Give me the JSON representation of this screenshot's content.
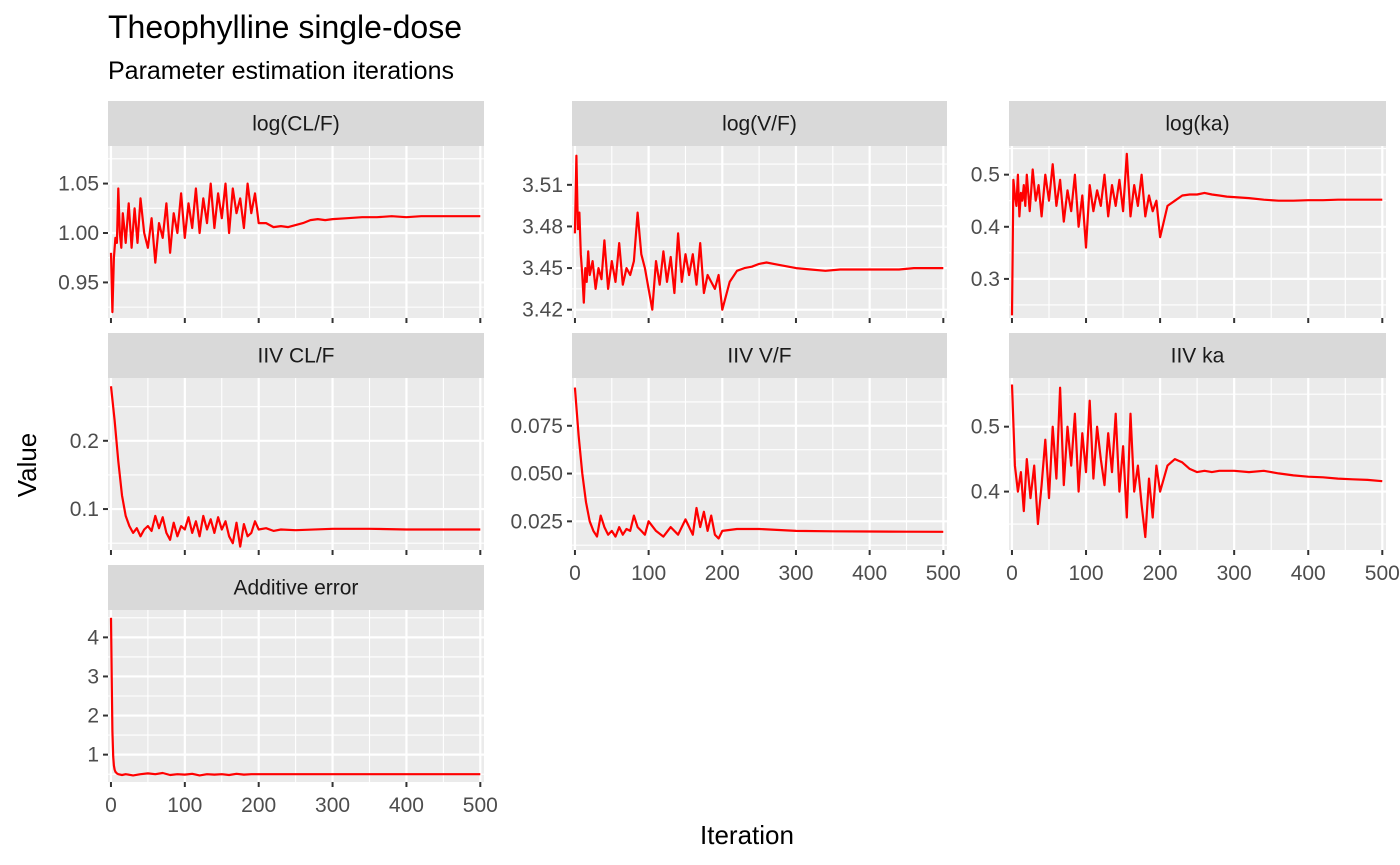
{
  "chart_data": {
    "type": "line",
    "title": "Theophylline single-dose",
    "subtitle": "Parameter estimation iterations",
    "xlabel": "Iteration",
    "ylabel": "Value",
    "line_color": "#ff0000",
    "panel_background": "#ebebeb",
    "strip_background": "#d9d9d9",
    "grid": true,
    "facet_scales": "free_y",
    "x_ticks": [
      0,
      100,
      200,
      300,
      400,
      500
    ],
    "xlim": [
      -4,
      505
    ],
    "panels": [
      {
        "label": "log(CL/F)",
        "ylim": [
          0.914,
          1.088
        ],
        "y_ticks": [
          0.95,
          1.0,
          1.05
        ],
        "y_tick_labels": [
          "0.95",
          "1.00",
          "1.05"
        ],
        "x": [
          0,
          2,
          4,
          6,
          8,
          10,
          12,
          14,
          16,
          18,
          20,
          24,
          28,
          32,
          36,
          40,
          45,
          50,
          55,
          60,
          65,
          70,
          75,
          80,
          85,
          90,
          95,
          100,
          105,
          110,
          115,
          120,
          125,
          130,
          135,
          140,
          145,
          150,
          155,
          160,
          165,
          170,
          175,
          180,
          185,
          190,
          195,
          200,
          210,
          220,
          230,
          240,
          250,
          260,
          270,
          280,
          290,
          300,
          320,
          340,
          360,
          380,
          400,
          420,
          440,
          460,
          480,
          500
        ],
        "y": [
          0.98,
          0.92,
          0.975,
          0.995,
          0.99,
          1.045,
          1.0,
          0.985,
          1.02,
          1.005,
          0.99,
          1.03,
          0.985,
          1.025,
          0.99,
          1.035,
          1.0,
          0.985,
          1.015,
          0.97,
          1.01,
          0.995,
          1.03,
          0.98,
          1.02,
          1.0,
          1.04,
          0.995,
          1.03,
          1.005,
          1.045,
          1.0,
          1.035,
          1.01,
          1.05,
          1.005,
          1.04,
          1.015,
          1.05,
          1.0,
          1.045,
          1.02,
          1.035,
          1.005,
          1.05,
          1.02,
          1.04,
          1.01,
          1.01,
          1.006,
          1.007,
          1.006,
          1.008,
          1.01,
          1.013,
          1.014,
          1.013,
          1.014,
          1.015,
          1.016,
          1.016,
          1.017,
          1.016,
          1.017,
          1.017,
          1.017,
          1.017,
          1.017
        ]
      },
      {
        "label": "log(V/F)",
        "ylim": [
          3.414,
          3.538
        ],
        "y_ticks": [
          3.42,
          3.45,
          3.48,
          3.51
        ],
        "y_tick_labels": [
          "3.42",
          "3.45",
          "3.48",
          "3.51"
        ],
        "x": [
          0,
          2,
          4,
          6,
          8,
          10,
          12,
          14,
          16,
          18,
          20,
          24,
          28,
          32,
          36,
          40,
          45,
          50,
          55,
          60,
          65,
          70,
          75,
          80,
          85,
          90,
          95,
          100,
          105,
          110,
          115,
          120,
          125,
          130,
          135,
          140,
          145,
          150,
          155,
          160,
          165,
          170,
          175,
          180,
          185,
          190,
          195,
          200,
          210,
          220,
          230,
          240,
          250,
          260,
          270,
          280,
          290,
          300,
          320,
          340,
          360,
          380,
          400,
          420,
          440,
          460,
          480,
          500
        ],
        "y": [
          3.475,
          3.531,
          3.478,
          3.49,
          3.46,
          3.445,
          3.425,
          3.45,
          3.44,
          3.462,
          3.445,
          3.455,
          3.435,
          3.45,
          3.442,
          3.47,
          3.435,
          3.455,
          3.44,
          3.468,
          3.438,
          3.45,
          3.445,
          3.455,
          3.49,
          3.46,
          3.45,
          3.435,
          3.42,
          3.455,
          3.438,
          3.462,
          3.44,
          3.458,
          3.432,
          3.475,
          3.44,
          3.46,
          3.445,
          3.46,
          3.438,
          3.468,
          3.432,
          3.445,
          3.44,
          3.435,
          3.445,
          3.42,
          3.44,
          3.448,
          3.45,
          3.451,
          3.453,
          3.454,
          3.453,
          3.452,
          3.451,
          3.45,
          3.449,
          3.448,
          3.449,
          3.449,
          3.449,
          3.449,
          3.449,
          3.45,
          3.45,
          3.45
        ]
      },
      {
        "label": "log(ka)",
        "ylim": [
          0.225,
          0.555
        ],
        "y_ticks": [
          0.3,
          0.4,
          0.5
        ],
        "y_tick_labels": [
          "0.3",
          "0.4",
          "0.5"
        ],
        "x": [
          0,
          2,
          4,
          6,
          8,
          10,
          12,
          14,
          16,
          18,
          20,
          24,
          28,
          32,
          36,
          40,
          45,
          50,
          55,
          60,
          65,
          70,
          75,
          80,
          85,
          90,
          95,
          100,
          105,
          110,
          115,
          120,
          125,
          130,
          135,
          140,
          145,
          150,
          155,
          160,
          165,
          170,
          175,
          180,
          185,
          190,
          195,
          200,
          210,
          220,
          230,
          240,
          250,
          260,
          270,
          280,
          290,
          300,
          320,
          340,
          360,
          380,
          400,
          420,
          440,
          460,
          480,
          500
        ],
        "y": [
          0.23,
          0.49,
          0.46,
          0.44,
          0.5,
          0.42,
          0.465,
          0.45,
          0.48,
          0.44,
          0.5,
          0.43,
          0.51,
          0.45,
          0.48,
          0.42,
          0.5,
          0.45,
          0.52,
          0.44,
          0.49,
          0.41,
          0.47,
          0.43,
          0.5,
          0.4,
          0.46,
          0.36,
          0.48,
          0.43,
          0.47,
          0.44,
          0.5,
          0.42,
          0.48,
          0.44,
          0.49,
          0.43,
          0.54,
          0.42,
          0.48,
          0.44,
          0.5,
          0.42,
          0.46,
          0.43,
          0.45,
          0.38,
          0.44,
          0.45,
          0.46,
          0.462,
          0.462,
          0.465,
          0.462,
          0.46,
          0.458,
          0.457,
          0.455,
          0.452,
          0.45,
          0.45,
          0.451,
          0.451,
          0.452,
          0.452,
          0.452,
          0.452
        ]
      },
      {
        "label": "IIV CL/F",
        "ylim": [
          0.04,
          0.292
        ],
        "y_ticks": [
          0.1,
          0.2
        ],
        "y_tick_labels": [
          "0.1",
          "0.2"
        ],
        "x": [
          0,
          5,
          10,
          15,
          20,
          25,
          30,
          35,
          40,
          45,
          50,
          55,
          60,
          65,
          70,
          75,
          80,
          85,
          90,
          95,
          100,
          105,
          110,
          115,
          120,
          125,
          130,
          135,
          140,
          145,
          150,
          155,
          160,
          165,
          170,
          175,
          180,
          185,
          190,
          195,
          200,
          210,
          220,
          230,
          250,
          300,
          350,
          400,
          450,
          500
        ],
        "y": [
          0.28,
          0.23,
          0.17,
          0.12,
          0.09,
          0.075,
          0.065,
          0.072,
          0.06,
          0.07,
          0.075,
          0.068,
          0.09,
          0.072,
          0.088,
          0.065,
          0.055,
          0.08,
          0.06,
          0.075,
          0.07,
          0.088,
          0.065,
          0.082,
          0.06,
          0.09,
          0.07,
          0.085,
          0.065,
          0.088,
          0.07,
          0.082,
          0.06,
          0.05,
          0.08,
          0.045,
          0.078,
          0.06,
          0.065,
          0.082,
          0.07,
          0.072,
          0.068,
          0.07,
          0.069,
          0.071,
          0.071,
          0.07,
          0.07,
          0.07
        ]
      },
      {
        "label": "IIV V/F",
        "ylim": [
          0.01,
          0.1
        ],
        "y_ticks": [
          0.025,
          0.05,
          0.075
        ],
        "y_tick_labels": [
          "0.025",
          "0.050",
          "0.075"
        ],
        "x": [
          0,
          5,
          10,
          15,
          20,
          25,
          30,
          35,
          40,
          45,
          50,
          55,
          60,
          65,
          70,
          75,
          80,
          85,
          90,
          95,
          100,
          110,
          120,
          130,
          140,
          150,
          160,
          165,
          170,
          175,
          180,
          185,
          190,
          195,
          200,
          220,
          250,
          300,
          350,
          400,
          450,
          500
        ],
        "y": [
          0.095,
          0.07,
          0.05,
          0.035,
          0.025,
          0.02,
          0.017,
          0.028,
          0.022,
          0.018,
          0.02,
          0.017,
          0.022,
          0.018,
          0.021,
          0.02,
          0.028,
          0.022,
          0.02,
          0.018,
          0.025,
          0.02,
          0.017,
          0.022,
          0.018,
          0.026,
          0.018,
          0.032,
          0.022,
          0.03,
          0.02,
          0.028,
          0.018,
          0.016,
          0.02,
          0.021,
          0.021,
          0.02,
          0.0198,
          0.0197,
          0.0196,
          0.0195
        ]
      },
      {
        "label": "IIV ka",
        "ylim": [
          0.31,
          0.575
        ],
        "y_ticks": [
          0.4,
          0.5
        ],
        "y_tick_labels": [
          "0.4",
          "0.5"
        ],
        "x": [
          0,
          4,
          8,
          12,
          16,
          20,
          25,
          30,
          35,
          40,
          45,
          50,
          55,
          60,
          65,
          70,
          75,
          80,
          85,
          90,
          95,
          100,
          105,
          110,
          115,
          120,
          125,
          130,
          135,
          140,
          145,
          150,
          155,
          160,
          165,
          170,
          175,
          180,
          185,
          190,
          195,
          200,
          210,
          220,
          230,
          240,
          250,
          260,
          270,
          280,
          300,
          320,
          340,
          360,
          380,
          400,
          420,
          440,
          460,
          480,
          500
        ],
        "y": [
          0.565,
          0.44,
          0.4,
          0.43,
          0.37,
          0.45,
          0.39,
          0.44,
          0.35,
          0.41,
          0.48,
          0.39,
          0.5,
          0.42,
          0.56,
          0.41,
          0.5,
          0.44,
          0.52,
          0.4,
          0.49,
          0.43,
          0.54,
          0.42,
          0.5,
          0.45,
          0.41,
          0.49,
          0.43,
          0.52,
          0.4,
          0.47,
          0.36,
          0.52,
          0.4,
          0.44,
          0.38,
          0.33,
          0.42,
          0.36,
          0.44,
          0.4,
          0.44,
          0.45,
          0.445,
          0.435,
          0.43,
          0.432,
          0.43,
          0.432,
          0.432,
          0.43,
          0.432,
          0.428,
          0.425,
          0.423,
          0.422,
          0.42,
          0.419,
          0.418,
          0.416
        ]
      },
      {
        "label": "Additive error",
        "ylim": [
          0.3,
          4.7
        ],
        "y_ticks": [
          1,
          2,
          3,
          4
        ],
        "y_tick_labels": [
          "1",
          "2",
          "3",
          "4"
        ],
        "x": [
          0,
          1,
          2,
          3,
          4,
          5,
          6,
          8,
          10,
          15,
          20,
          30,
          40,
          50,
          60,
          70,
          80,
          90,
          100,
          110,
          120,
          130,
          140,
          150,
          160,
          170,
          180,
          190,
          200,
          250,
          300,
          350,
          400,
          450,
          500
        ],
        "y": [
          4.5,
          3.0,
          1.6,
          0.95,
          0.72,
          0.62,
          0.56,
          0.52,
          0.5,
          0.48,
          0.5,
          0.47,
          0.5,
          0.52,
          0.5,
          0.53,
          0.48,
          0.5,
          0.49,
          0.51,
          0.47,
          0.5,
          0.49,
          0.5,
          0.48,
          0.51,
          0.49,
          0.5,
          0.5,
          0.5,
          0.5,
          0.5,
          0.5,
          0.5,
          0.5
        ]
      }
    ]
  }
}
